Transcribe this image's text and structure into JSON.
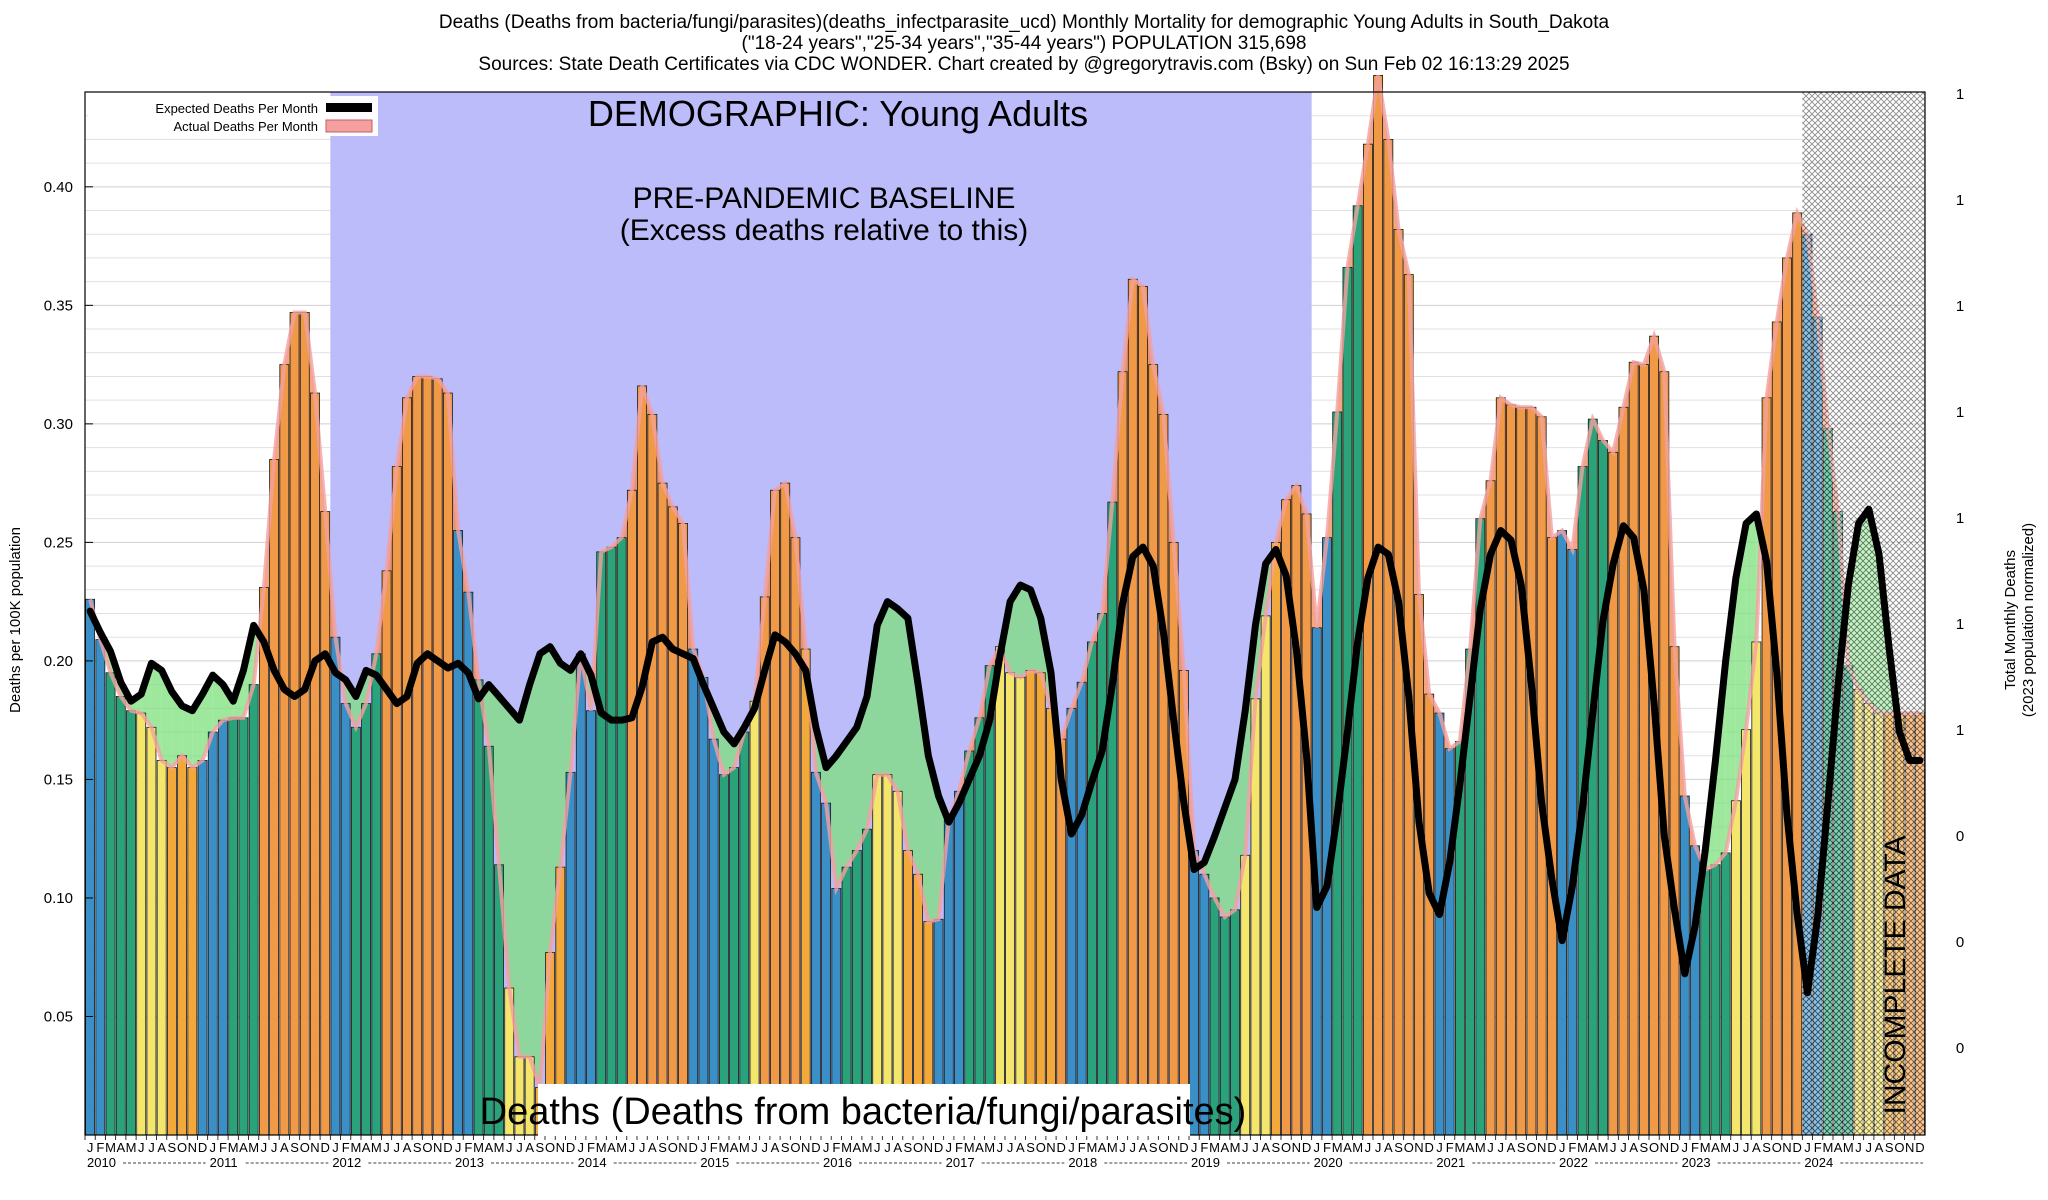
{
  "header": {
    "line1": "Deaths (Deaths from bacteria/fungi/parasites)(deaths_infectparasite_ucd) Monthly Mortality for demographic Young Adults in South_Dakota",
    "line2": "(\"18-24 years\",\"25-34 years\",\"35-44 years\") POPULATION 315,698",
    "line3": "Sources: State Death Certificates via CDC WONDER.                Chart created by @gregorytravis.com (Bsky) on Sun Feb 02 16:13:29 2025"
  },
  "chart_data": {
    "type": "bar",
    "title": "Deaths (Deaths from bacteria/fungi/parasites)(deaths_infectparasite_ucd) Monthly Mortality for demographic Young Adults in South_Dakota",
    "ylabel": "Deaths per 100K population",
    "y2label_line1": "Total Monthly Deaths",
    "y2label_line2": "(2023 population normalized)",
    "ylim": [
      0,
      0.44
    ],
    "yticks": [
      0.05,
      0.1,
      0.15,
      0.2,
      0.25,
      0.3,
      0.35,
      0.4
    ],
    "y2ticks": [
      "1",
      "1",
      "1",
      "1",
      "1",
      "1",
      "1",
      "0",
      "0",
      "0"
    ],
    "month_letters": [
      "J",
      "F",
      "M",
      "A",
      "M",
      "J",
      "J",
      "A",
      "S",
      "O",
      "N",
      "D"
    ],
    "years": [
      "2010",
      "2011",
      "2012",
      "2013",
      "2014",
      "2015",
      "2016",
      "2017",
      "2018",
      "2019",
      "2020",
      "2021",
      "2022",
      "2023",
      "2024"
    ],
    "legend": {
      "position": "top-left",
      "expected": "Expected Deaths Per Month",
      "actual": "Actual Deaths Per Month"
    },
    "annotations": {
      "demographic": "DEMOGRAPHIC: Young Adults",
      "baseline_line1": "PRE-PANDEMIC BASELINE",
      "baseline_line2": "(Excess deaths relative to this)",
      "cause": "Deaths (Deaths from bacteria/fungi/parasites)",
      "incomplete": "INCOMPLETE DATA"
    },
    "baseline_range": [
      "2012-01",
      "2019-12"
    ],
    "incomplete_from": "2024-07",
    "colors": {
      "winter": "#3a8fc6",
      "spring": "#2aa37a",
      "summer": "#f4e66a",
      "fall": "#f2a93a",
      "baseline_band": "#bcbcfa",
      "excess_fill": "#f08a4a",
      "deficit_fill": "#7de07d",
      "expected_line": "#000000",
      "actual_band": "#f4a0a0"
    },
    "actual": [
      0.226,
      0.209,
      0.195,
      0.185,
      0.179,
      0.178,
      0.172,
      0.158,
      0.155,
      0.16,
      0.155,
      0.158,
      0.17,
      0.175,
      0.176,
      0.176,
      0.19,
      0.231,
      0.285,
      0.325,
      0.347,
      0.347,
      0.313,
      0.263,
      0.21,
      0.182,
      0.172,
      0.182,
      0.203,
      0.238,
      0.282,
      0.311,
      0.32,
      0.32,
      0.319,
      0.313,
      0.255,
      0.229,
      0.192,
      0.164,
      0.114,
      0.062,
      0.033,
      0.033,
      0.02,
      0.077,
      0.113,
      0.153,
      0.203,
      0.179,
      0.246,
      0.248,
      0.252,
      0.272,
      0.316,
      0.304,
      0.275,
      0.265,
      0.258,
      0.205,
      0.193,
      0.167,
      0.152,
      0.155,
      0.17,
      0.183,
      0.227,
      0.272,
      0.275,
      0.252,
      0.205,
      0.153,
      0.14,
      0.104,
      0.113,
      0.12,
      0.129,
      0.152,
      0.152,
      0.145,
      0.12,
      0.11,
      0.09,
      0.091,
      0.133,
      0.145,
      0.162,
      0.176,
      0.198,
      0.206,
      0.195,
      0.193,
      0.196,
      0.195,
      0.18,
      0.167,
      0.18,
      0.191,
      0.208,
      0.22,
      0.267,
      0.322,
      0.361,
      0.358,
      0.325,
      0.304,
      0.25,
      0.196,
      0.12,
      0.11,
      0.1,
      0.092,
      0.095,
      0.118,
      0.184,
      0.219,
      0.25,
      0.268,
      0.274,
      0.262,
      0.214,
      0.252,
      0.305,
      0.366,
      0.392,
      0.418,
      0.447,
      0.42,
      0.382,
      0.363,
      0.228,
      0.186,
      0.178,
      0.163,
      0.166,
      0.205,
      0.26,
      0.276,
      0.311,
      0.308,
      0.307,
      0.307,
      0.303,
      0.252,
      0.255,
      0.247,
      0.282,
      0.302,
      0.293,
      0.288,
      0.307,
      0.326,
      0.325,
      0.337,
      0.322,
      0.206,
      0.143,
      0.122,
      0.112,
      0.114,
      0.119,
      0.141,
      0.171,
      0.208,
      0.311,
      0.343,
      0.37,
      0.389,
      0.38,
      0.345,
      0.298,
      0.263,
      0.198,
      0.188,
      0.182,
      0.178,
      0.178,
      0.178,
      0.178,
      0.178
    ],
    "expected": [
      0.221,
      0.212,
      0.204,
      0.191,
      0.183,
      0.186,
      0.199,
      0.196,
      0.187,
      0.181,
      0.179,
      0.186,
      0.194,
      0.19,
      0.183,
      0.196,
      0.215,
      0.208,
      0.196,
      0.188,
      0.185,
      0.188,
      0.2,
      0.203,
      0.195,
      0.192,
      0.185,
      0.196,
      0.194,
      0.188,
      0.182,
      0.185,
      0.199,
      0.203,
      0.2,
      0.197,
      0.199,
      0.195,
      0.184,
      0.19,
      0.185,
      0.18,
      0.175,
      0.19,
      0.203,
      0.206,
      0.199,
      0.196,
      0.203,
      0.194,
      0.178,
      0.175,
      0.175,
      0.176,
      0.189,
      0.208,
      0.21,
      0.205,
      0.203,
      0.201,
      0.19,
      0.18,
      0.17,
      0.165,
      0.172,
      0.18,
      0.196,
      0.211,
      0.208,
      0.203,
      0.196,
      0.172,
      0.155,
      0.16,
      0.166,
      0.172,
      0.185,
      0.215,
      0.225,
      0.222,
      0.218,
      0.19,
      0.16,
      0.143,
      0.132,
      0.14,
      0.15,
      0.16,
      0.175,
      0.202,
      0.225,
      0.232,
      0.23,
      0.218,
      0.195,
      0.15,
      0.127,
      0.135,
      0.149,
      0.162,
      0.19,
      0.224,
      0.244,
      0.248,
      0.24,
      0.212,
      0.175,
      0.14,
      0.112,
      0.115,
      0.126,
      0.138,
      0.15,
      0.179,
      0.215,
      0.241,
      0.247,
      0.236,
      0.205,
      0.16,
      0.096,
      0.105,
      0.135,
      0.17,
      0.208,
      0.235,
      0.248,
      0.245,
      0.225,
      0.185,
      0.132,
      0.102,
      0.093,
      0.115,
      0.148,
      0.185,
      0.222,
      0.245,
      0.255,
      0.251,
      0.232,
      0.19,
      0.14,
      0.108,
      0.082,
      0.105,
      0.138,
      0.178,
      0.217,
      0.241,
      0.257,
      0.252,
      0.23,
      0.182,
      0.126,
      0.095,
      0.068,
      0.088,
      0.12,
      0.158,
      0.2,
      0.235,
      0.258,
      0.262,
      0.242,
      0.195,
      0.135,
      0.093,
      0.06,
      0.092,
      0.14,
      0.19,
      0.232,
      0.258,
      0.264,
      0.245,
      0.205,
      0.17,
      0.158,
      0.158
    ]
  }
}
